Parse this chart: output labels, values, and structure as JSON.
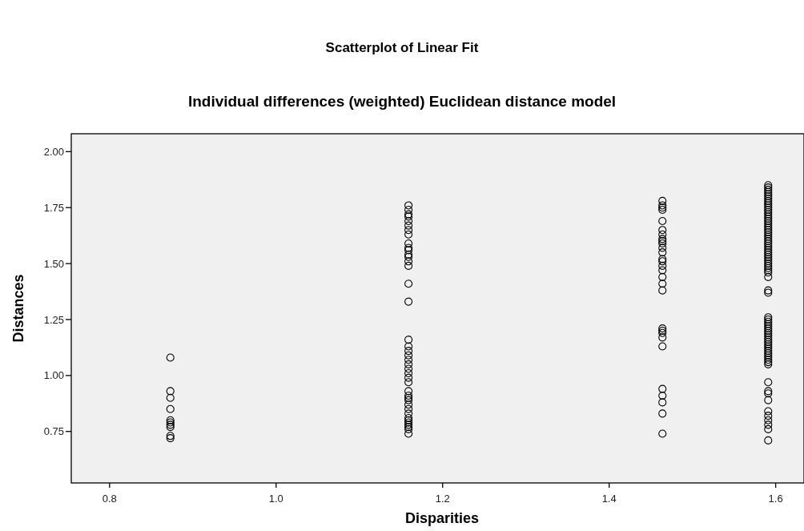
{
  "chart_data": {
    "type": "scatter",
    "title": "Scatterplot of Linear Fit",
    "subtitle": "Individual differences (weighted) Euclidean distance model",
    "xlabel": "Disparities",
    "ylabel": "Distances",
    "xlim": [
      0.754,
      1.634
    ],
    "xticks": [
      {
        "value": 0.8,
        "label": "0.8"
      },
      {
        "value": 1.0,
        "label": "1.0"
      },
      {
        "value": 1.2,
        "label": "1.2"
      },
      {
        "value": 1.4,
        "label": "1.4"
      },
      {
        "value": 1.6,
        "label": "1.6"
      }
    ],
    "ylim": [
      0.52,
      2.08
    ],
    "yticks": [
      {
        "value": 0.75,
        "label": "0.75"
      },
      {
        "value": 1.0,
        "label": "1.00"
      },
      {
        "value": 1.25,
        "label": "1.25"
      },
      {
        "value": 1.5,
        "label": "1.50"
      },
      {
        "value": 1.75,
        "label": "1.75"
      },
      {
        "value": 2.0,
        "label": "2.00"
      }
    ],
    "grid": false,
    "marker": "circle",
    "series": [
      {
        "color": "#000000",
        "x": [
          0.873,
          0.873,
          0.873,
          0.873,
          0.873,
          0.873,
          0.873,
          0.873,
          0.873,
          0.873
        ],
        "values": [
          1.08,
          0.93,
          0.9,
          0.85,
          0.8,
          0.79,
          0.78,
          0.77,
          0.73,
          0.72
        ]
      },
      {
        "color": "#000000",
        "x": [
          1.159,
          1.159,
          1.159,
          1.159,
          1.159,
          1.159,
          1.159,
          1.159,
          1.159,
          1.159,
          1.159,
          1.159,
          1.159,
          1.159,
          1.159,
          1.159,
          1.159,
          1.159,
          1.159,
          1.159,
          1.159,
          1.159,
          1.159,
          1.159,
          1.159,
          1.159,
          1.159,
          1.159,
          1.159,
          1.159,
          1.159,
          1.159,
          1.159,
          1.159,
          1.159,
          1.159,
          1.159,
          1.159,
          1.159,
          1.159,
          1.159
        ],
        "values": [
          1.76,
          1.74,
          1.72,
          1.71,
          1.69,
          1.67,
          1.65,
          1.63,
          1.59,
          1.57,
          1.56,
          1.54,
          1.53,
          1.51,
          1.49,
          1.41,
          1.33,
          1.16,
          1.13,
          1.11,
          1.09,
          1.07,
          1.05,
          1.03,
          1.01,
          0.99,
          0.97,
          0.93,
          0.91,
          0.9,
          0.89,
          0.87,
          0.85,
          0.83,
          0.81,
          0.8,
          0.79,
          0.78,
          0.77,
          0.76,
          0.74
        ]
      },
      {
        "color": "#000000",
        "x": [
          1.464,
          1.464,
          1.464,
          1.464,
          1.464,
          1.464,
          1.464,
          1.464,
          1.464,
          1.464,
          1.464,
          1.464,
          1.464,
          1.464,
          1.464,
          1.464,
          1.464,
          1.464,
          1.464,
          1.464,
          1.464,
          1.464,
          1.464,
          1.464,
          1.464,
          1.464,
          1.464,
          1.464,
          1.464
        ],
        "values": [
          1.78,
          1.76,
          1.75,
          1.74,
          1.69,
          1.65,
          1.63,
          1.61,
          1.6,
          1.59,
          1.57,
          1.55,
          1.52,
          1.51,
          1.49,
          1.47,
          1.44,
          1.41,
          1.38,
          1.21,
          1.2,
          1.19,
          1.17,
          1.13,
          0.94,
          0.91,
          0.88,
          0.83,
          0.74
        ]
      },
      {
        "color": "#000000",
        "x": [
          1.591,
          1.591,
          1.591,
          1.591,
          1.591,
          1.591,
          1.591,
          1.591,
          1.591,
          1.591,
          1.591,
          1.591,
          1.591,
          1.591,
          1.591,
          1.591,
          1.591,
          1.591,
          1.591,
          1.591,
          1.591,
          1.591,
          1.591,
          1.591,
          1.591,
          1.591,
          1.591,
          1.591,
          1.591,
          1.591,
          1.591,
          1.591,
          1.591,
          1.591,
          1.591,
          1.591,
          1.591,
          1.591,
          1.591,
          1.591,
          1.591,
          1.591,
          1.591,
          1.591,
          1.591,
          1.591,
          1.591,
          1.591,
          1.591,
          1.591,
          1.591,
          1.591,
          1.591,
          1.591,
          1.591,
          1.591,
          1.591,
          1.591,
          1.591,
          1.591,
          1.591,
          1.591,
          1.591,
          1.591,
          1.591,
          1.591,
          1.591,
          1.591,
          1.591,
          1.591,
          1.591,
          1.591,
          1.591,
          1.591,
          1.591
        ],
        "values": [
          1.85,
          1.84,
          1.83,
          1.82,
          1.81,
          1.8,
          1.79,
          1.78,
          1.77,
          1.76,
          1.75,
          1.74,
          1.73,
          1.72,
          1.71,
          1.7,
          1.69,
          1.68,
          1.67,
          1.66,
          1.65,
          1.64,
          1.63,
          1.62,
          1.61,
          1.6,
          1.59,
          1.58,
          1.57,
          1.56,
          1.55,
          1.54,
          1.53,
          1.52,
          1.51,
          1.5,
          1.49,
          1.48,
          1.47,
          1.46,
          1.44,
          1.38,
          1.37,
          1.26,
          1.25,
          1.24,
          1.23,
          1.22,
          1.21,
          1.2,
          1.19,
          1.18,
          1.17,
          1.16,
          1.15,
          1.14,
          1.13,
          1.12,
          1.11,
          1.1,
          1.09,
          1.08,
          1.07,
          1.06,
          1.05,
          0.97,
          0.93,
          0.92,
          0.89,
          0.84,
          0.82,
          0.8,
          0.78,
          0.76,
          0.71
        ]
      }
    ]
  }
}
